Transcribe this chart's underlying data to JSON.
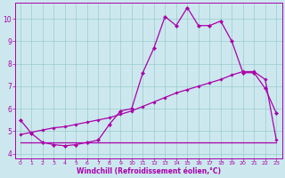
{
  "xlabel": "Windchill (Refroidissement éolien,°C)",
  "bg_color": "#cce8ee",
  "line_color": "#aa00aa",
  "grid_color": "#99cccc",
  "spine_color": "#aa00aa",
  "xlim": [
    -0.5,
    23.5
  ],
  "ylim": [
    3.8,
    10.7
  ],
  "xticks": [
    0,
    1,
    2,
    3,
    4,
    5,
    6,
    7,
    8,
    9,
    10,
    11,
    12,
    13,
    14,
    15,
    16,
    17,
    18,
    19,
    20,
    21,
    22,
    23
  ],
  "yticks": [
    4,
    5,
    6,
    7,
    8,
    9,
    10
  ],
  "line1_x": [
    0,
    1,
    2,
    3,
    4,
    5,
    6,
    7,
    8,
    9,
    10,
    11,
    12,
    13,
    14,
    15,
    16,
    17,
    18,
    19,
    20,
    21,
    22,
    23
  ],
  "line1_y": [
    5.5,
    4.9,
    4.5,
    4.4,
    4.35,
    4.4,
    4.5,
    4.6,
    5.3,
    5.9,
    6.0,
    7.6,
    8.7,
    10.1,
    9.7,
    10.5,
    9.7,
    9.7,
    9.9,
    9.0,
    7.6,
    7.6,
    6.9,
    5.8
  ],
  "line2_x": [
    0,
    10,
    22,
    23
  ],
  "line2_y": [
    4.5,
    4.5,
    4.5,
    4.5
  ],
  "line3_x": [
    0,
    1,
    2,
    3,
    4,
    5,
    6,
    7,
    8,
    9,
    10,
    11,
    12,
    13,
    14,
    15,
    16,
    17,
    18,
    19,
    20,
    21,
    22,
    23
  ],
  "line3_y": [
    4.85,
    4.95,
    5.05,
    5.15,
    5.2,
    5.3,
    5.4,
    5.5,
    5.6,
    5.75,
    5.9,
    6.1,
    6.3,
    6.5,
    6.7,
    6.85,
    7.0,
    7.15,
    7.3,
    7.5,
    7.65,
    7.65,
    7.3,
    4.6
  ],
  "xtick_fontsize": 4.5,
  "ytick_fontsize": 5.5,
  "xlabel_fontsize": 5.5
}
